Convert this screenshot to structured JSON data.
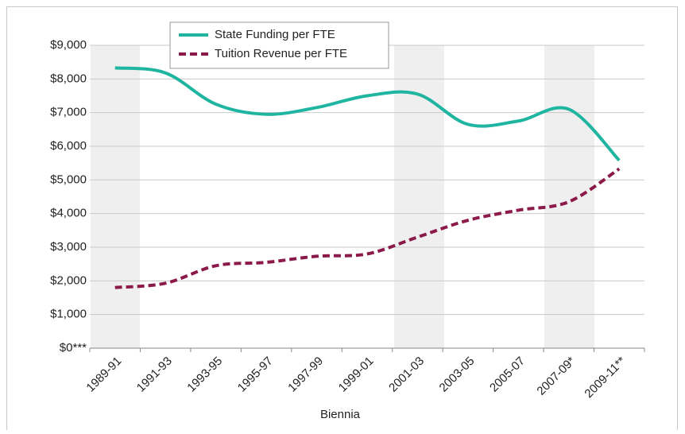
{
  "chart_data": {
    "type": "line",
    "x_label": "Biennia",
    "categories": [
      "1989-91",
      "1991-93",
      "1993-95",
      "1995-97",
      "1997-99",
      "1999-01",
      "2001-03",
      "2003-05",
      "2005-07",
      "2007-09*",
      "2009-11**"
    ],
    "series": [
      {
        "name": "State Funding per FTE",
        "color": "#1fb5a0",
        "dash": false,
        "values": [
          8330,
          8180,
          7250,
          6950,
          7150,
          7500,
          7550,
          6650,
          6750,
          7100,
          5580
        ]
      },
      {
        "name": "Tuition Revenue per FTE",
        "color": "#8b1a4a",
        "dash": true,
        "values": [
          1800,
          1930,
          2450,
          2550,
          2730,
          2800,
          3300,
          3800,
          4100,
          4350,
          5330
        ]
      }
    ],
    "ylim": [
      0,
      9000
    ],
    "yticks": [
      {
        "value": 0,
        "label": "$0***"
      },
      {
        "value": 1000,
        "label": "$1,000"
      },
      {
        "value": 2000,
        "label": "$2,000"
      },
      {
        "value": 3000,
        "label": "$3,000"
      },
      {
        "value": 4000,
        "label": "$4,000"
      },
      {
        "value": 5000,
        "label": "$5,000"
      },
      {
        "value": 6000,
        "label": "$6,000"
      },
      {
        "value": 7000,
        "label": "$7,000"
      },
      {
        "value": 8000,
        "label": "$8,000"
      },
      {
        "value": 9000,
        "label": "$9,000"
      }
    ],
    "grid": true
  }
}
